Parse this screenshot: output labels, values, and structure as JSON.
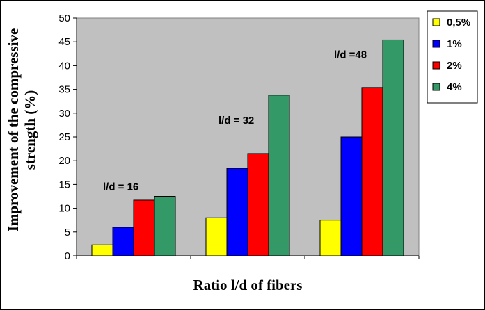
{
  "chart_data": {
    "type": "bar",
    "xlabel": "Ratio l/d of fibers",
    "ylabel": "Improvement of the compressive strength (%)",
    "ylabel_lines": [
      "Improvement of the compressive",
      "strength (%)"
    ],
    "ylim": [
      0,
      50
    ],
    "yticks": [
      0,
      5,
      10,
      15,
      20,
      25,
      30,
      35,
      40,
      45,
      50
    ],
    "grid": false,
    "legend_position": "top-right",
    "categories": [
      "l/d = 16",
      "l/d = 32",
      "l/d =48"
    ],
    "category_labels": [
      "l/d = 16",
      "l/d = 32",
      "l/d =48"
    ],
    "series": [
      {
        "name": "0,5%",
        "color": "#ffff00",
        "values": [
          2.3,
          8.0,
          7.5
        ]
      },
      {
        "name": "1%",
        "color": "#0000ff",
        "values": [
          6.0,
          18.4,
          25.0
        ]
      },
      {
        "name": "2%",
        "color": "#ff0000",
        "values": [
          11.7,
          21.5,
          35.4
        ]
      },
      {
        "name": "4%",
        "color": "#339966",
        "values": [
          12.5,
          33.8,
          45.4
        ]
      }
    ],
    "plot_background": "#c0c0c0"
  }
}
